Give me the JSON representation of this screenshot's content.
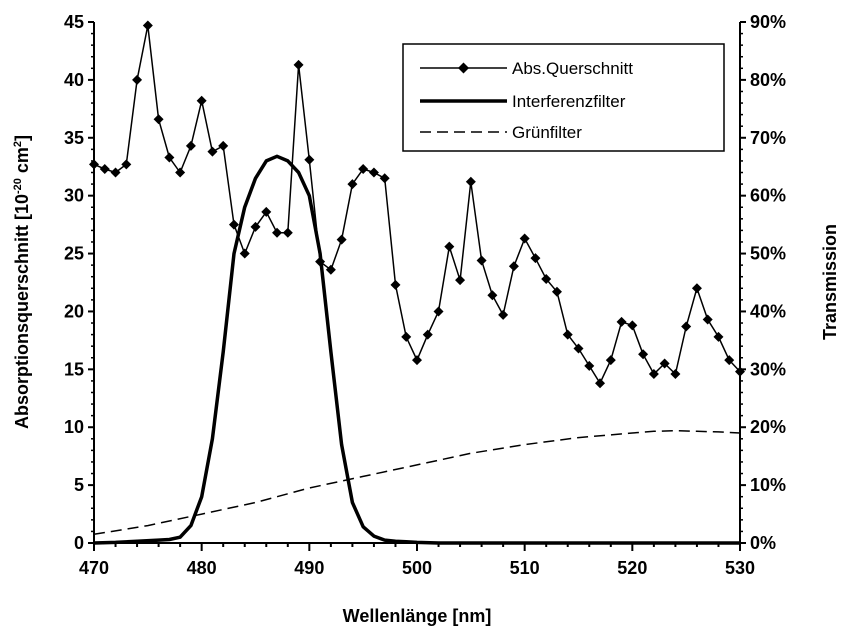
{
  "chart_data": {
    "type": "line",
    "title": "",
    "xlabel": "Wellenlänge [nm]",
    "ylabel": "Absorptionsquerschnitt [10",
    "ylabel_exp1": "-20",
    "ylabel_mid": " cm",
    "ylabel_exp2": "2",
    "ylabel_end": "]",
    "y2label": "Transmission",
    "xlim": [
      470,
      530
    ],
    "ylim": [
      0,
      45
    ],
    "y2lim": [
      0,
      0.9
    ],
    "x_ticks": [
      "470",
      "480",
      "490",
      "500",
      "510",
      "520",
      "530"
    ],
    "y_ticks": [
      "0",
      "5",
      "10",
      "15",
      "20",
      "25",
      "30",
      "35",
      "40",
      "45"
    ],
    "y2_ticks": [
      "0%",
      "10%",
      "20%",
      "30%",
      "40%",
      "50%",
      "60%",
      "70%",
      "80%",
      "90%"
    ],
    "grid": false,
    "legend_position": "top-right",
    "series": [
      {
        "name": "Abs.Querschnitt",
        "axis": "left",
        "style": "line-diamond",
        "x": [
          470,
          471,
          472,
          473,
          474,
          475,
          476,
          477,
          478,
          479,
          480,
          481,
          482,
          483,
          484,
          485,
          486,
          487,
          488,
          489,
          490,
          491,
          492,
          493,
          494,
          495,
          496,
          497,
          498,
          499,
          500,
          501,
          502,
          503,
          504,
          505,
          506,
          507,
          508,
          509,
          510,
          511,
          512,
          513,
          514,
          515,
          516,
          517,
          518,
          519,
          520,
          521,
          522,
          523,
          524,
          525,
          526,
          527,
          528,
          529,
          530
        ],
        "values": [
          32.7,
          32.3,
          32.0,
          32.7,
          40.0,
          44.7,
          36.6,
          33.3,
          32.0,
          34.3,
          38.2,
          33.8,
          34.3,
          27.5,
          25.0,
          27.3,
          28.6,
          26.8,
          26.8,
          41.3,
          33.1,
          24.3,
          23.6,
          26.2,
          31.0,
          32.3,
          32.0,
          31.5,
          22.3,
          17.8,
          15.8,
          18.0,
          20.0,
          25.6,
          22.7,
          31.2,
          24.4,
          21.4,
          19.7,
          23.9,
          26.3,
          24.6,
          22.8,
          21.7,
          18.0,
          16.8,
          15.3,
          13.8,
          15.8,
          19.1,
          18.8,
          16.3,
          14.6,
          15.5,
          14.6,
          18.7,
          22.0,
          19.3,
          17.8,
          15.8,
          14.8
        ]
      },
      {
        "name": "Interferenzfilter",
        "axis": "right",
        "style": "thick-line",
        "x": [
          470,
          472,
          474,
          476,
          477,
          478,
          479,
          480,
          481,
          482,
          483,
          484,
          485,
          486,
          487,
          488,
          489,
          490,
          491,
          492,
          493,
          494,
          495,
          496,
          497,
          498,
          499,
          500,
          502,
          505,
          510,
          520,
          530
        ],
        "values": [
          0.0,
          0.001,
          0.003,
          0.005,
          0.006,
          0.01,
          0.03,
          0.08,
          0.18,
          0.33,
          0.5,
          0.58,
          0.63,
          0.66,
          0.668,
          0.66,
          0.64,
          0.6,
          0.5,
          0.33,
          0.17,
          0.07,
          0.028,
          0.012,
          0.005,
          0.003,
          0.002,
          0.001,
          0.0,
          0.0,
          0.0,
          0.0,
          0.0
        ]
      },
      {
        "name": "Grünfilter",
        "axis": "right",
        "style": "dashed",
        "x": [
          470,
          475,
          480,
          485,
          490,
          495,
          500,
          505,
          510,
          515,
          520,
          522,
          524,
          526,
          528,
          530
        ],
        "values": [
          0.015,
          0.03,
          0.05,
          0.07,
          0.095,
          0.115,
          0.135,
          0.155,
          0.17,
          0.182,
          0.19,
          0.193,
          0.194,
          0.193,
          0.192,
          0.19
        ]
      }
    ]
  }
}
